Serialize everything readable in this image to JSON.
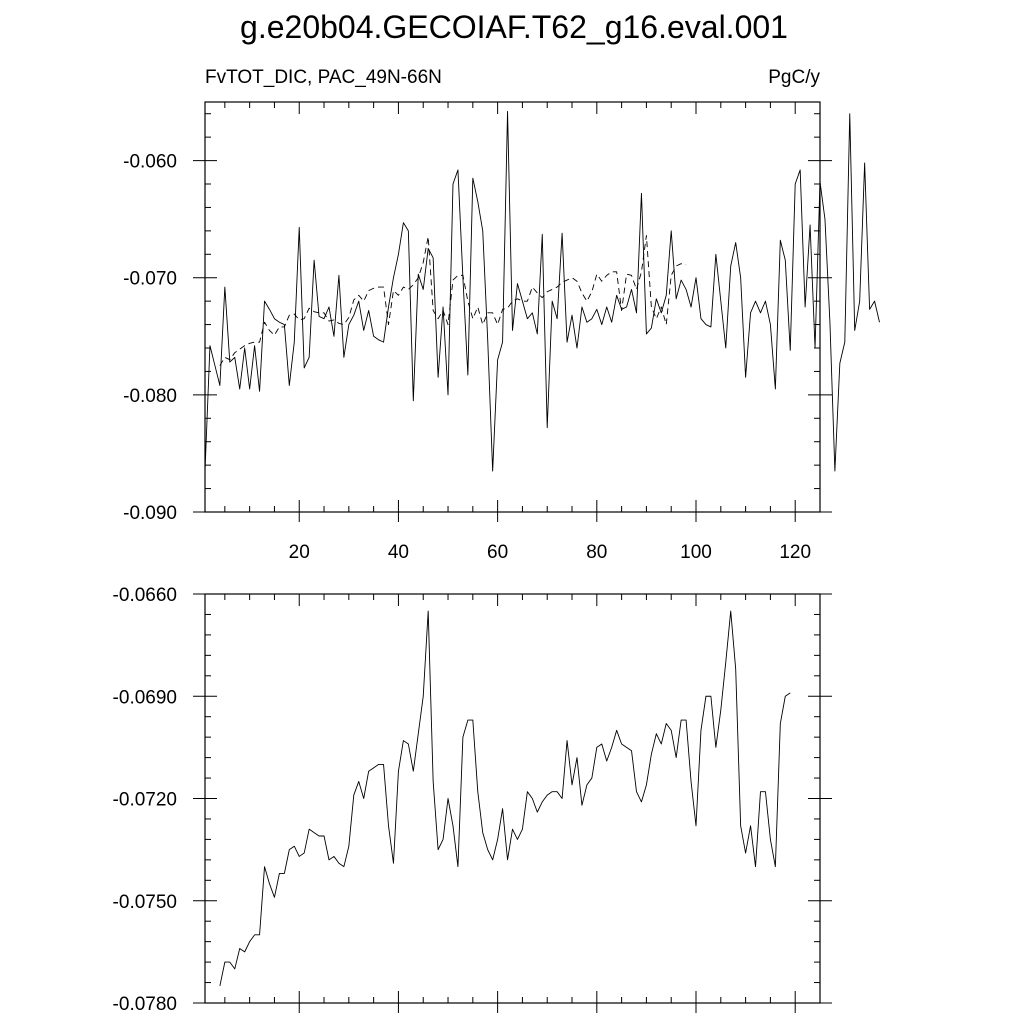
{
  "title": "g.e20b04.GECOIAF.T62_g16.eval.001",
  "subtitle_left": "FvTOT_DIC, PAC_49N-66N",
  "subtitle_right": "PgC/y",
  "chart_data": [
    {
      "type": "line",
      "panel": "top",
      "xlim": [
        1,
        125
      ],
      "ylim": [
        -0.09,
        -0.055
      ],
      "xticks": [
        20,
        40,
        60,
        80,
        100,
        120
      ],
      "xtick_labels": [
        "20",
        "40",
        "60",
        "80",
        "100",
        "120"
      ],
      "yticks": [
        -0.06,
        -0.07,
        -0.08,
        -0.09
      ],
      "ytick_labels": [
        "-0.060",
        "-0.070",
        "-0.080",
        "-0.090"
      ],
      "grid": false,
      "series": [
        {
          "style": "solid",
          "x_start": 1,
          "values": [
            -0.0865,
            -0.0758,
            -0.0775,
            -0.0792,
            -0.0708,
            -0.0772,
            -0.0768,
            -0.0795,
            -0.076,
            -0.0795,
            -0.0758,
            -0.0797,
            -0.072,
            -0.0727,
            -0.0735,
            -0.0738,
            -0.074,
            -0.0792,
            -0.0755,
            -0.0657,
            -0.0777,
            -0.0768,
            -0.0685,
            -0.0733,
            -0.0735,
            -0.0725,
            -0.075,
            -0.0698,
            -0.0768,
            -0.074,
            -0.0732,
            -0.072,
            -0.0745,
            -0.0728,
            -0.075,
            -0.0753,
            -0.0755,
            -0.0725,
            -0.07,
            -0.068,
            -0.0653,
            -0.066,
            -0.0805,
            -0.0697,
            -0.071,
            -0.0675,
            -0.0683,
            -0.0785,
            -0.0725,
            -0.08,
            -0.062,
            -0.0608,
            -0.07,
            -0.0783,
            -0.0615,
            -0.0635,
            -0.066,
            -0.0753,
            -0.0865,
            -0.077,
            -0.0755,
            -0.0558,
            -0.0745,
            -0.0705,
            -0.072,
            -0.0735,
            -0.073,
            -0.0748,
            -0.0663,
            -0.0828,
            -0.072,
            -0.0735,
            -0.0662,
            -0.0755,
            -0.0732,
            -0.076,
            -0.0725,
            -0.0738,
            -0.0735,
            -0.0727,
            -0.074,
            -0.0725,
            -0.0738,
            -0.0715,
            -0.0727,
            -0.0725,
            -0.071,
            -0.073,
            -0.0628,
            -0.0748,
            -0.0743,
            -0.0718,
            -0.073,
            -0.0715,
            -0.066,
            -0.0718,
            -0.0702,
            -0.071,
            -0.0725,
            -0.07,
            -0.0735,
            -0.074,
            -0.0742,
            -0.068,
            -0.072,
            -0.076,
            -0.069,
            -0.067,
            -0.07,
            -0.0785,
            -0.073,
            -0.072,
            -0.073,
            -0.072,
            -0.074,
            -0.0795,
            -0.0668,
            -0.0685,
            -0.0762,
            -0.062,
            -0.0608,
            -0.0725,
            -0.0655,
            -0.076,
            -0.0618,
            -0.065,
            -0.0738,
            -0.0865,
            -0.0773,
            -0.0755,
            -0.056,
            -0.0745,
            -0.072,
            -0.0602,
            -0.0727,
            -0.072,
            -0.0738
          ]
        },
        {
          "style": "dashed",
          "x_start": 4,
          "values": [
            -0.0775,
            -0.0768,
            -0.077,
            -0.0764,
            -0.0761,
            -0.0758,
            -0.0756,
            -0.0755,
            -0.0755,
            -0.0738,
            -0.0745,
            -0.0749,
            -0.0742,
            -0.0742,
            -0.0732,
            -0.0731,
            -0.0736,
            -0.0735,
            -0.0726,
            -0.0729,
            -0.073,
            -0.073,
            -0.0737,
            -0.0736,
            -0.0739,
            -0.074,
            -0.0734,
            -0.0719,
            -0.0715,
            -0.072,
            -0.0711,
            -0.0709,
            -0.0708,
            -0.0708,
            -0.074,
            -0.0711,
            -0.0715,
            -0.0708,
            -0.071,
            -0.0706,
            -0.07,
            -0.0687,
            -0.0665,
            -0.0728,
            -0.0735,
            -0.0728,
            -0.074,
            -0.0702,
            -0.0698,
            -0.0698,
            -0.072,
            -0.0735,
            -0.0725,
            -0.074,
            -0.073,
            -0.073,
            -0.074,
            -0.0727,
            -0.0726,
            -0.072,
            -0.0718,
            -0.072,
            -0.072,
            -0.0708,
            -0.0713,
            -0.0717,
            -0.0712,
            -0.071,
            -0.0708,
            -0.0704,
            -0.0702,
            -0.07,
            -0.0703,
            -0.0713,
            -0.072,
            -0.0712,
            -0.0697,
            -0.0703,
            -0.0698,
            -0.0695,
            -0.0695,
            -0.0728,
            -0.0697,
            -0.0698,
            -0.071,
            -0.0695,
            -0.0664,
            -0.0725,
            -0.0735,
            -0.0725,
            -0.074,
            -0.0698,
            -0.069,
            -0.0688,
            -0.0689
          ]
        }
      ]
    },
    {
      "type": "line",
      "panel": "bottom",
      "xlim": [
        1,
        125
      ],
      "ylim": [
        -0.078,
        -0.066
      ],
      "yticks": [
        -0.066,
        -0.069,
        -0.072,
        -0.075,
        -0.078
      ],
      "ytick_labels": [
        "-0.0660",
        "-0.0690",
        "-0.0720",
        "-0.0750",
        "-0.0780"
      ],
      "grid": false,
      "series": [
        {
          "style": "solid",
          "x_start": 4,
          "values": [
            -0.0775,
            -0.0768,
            -0.0768,
            -0.077,
            -0.0764,
            -0.0765,
            -0.0762,
            -0.076,
            -0.076,
            -0.074,
            -0.0745,
            -0.0749,
            -0.0742,
            -0.0742,
            -0.0735,
            -0.0734,
            -0.0737,
            -0.0736,
            -0.0729,
            -0.073,
            -0.0731,
            -0.0731,
            -0.0738,
            -0.0737,
            -0.0739,
            -0.074,
            -0.0734,
            -0.0719,
            -0.0715,
            -0.072,
            -0.0712,
            -0.0711,
            -0.071,
            -0.071,
            -0.0728,
            -0.0739,
            -0.0712,
            -0.0703,
            -0.0704,
            -0.0712,
            -0.0701,
            -0.069,
            -0.0665,
            -0.0715,
            -0.0735,
            -0.0732,
            -0.072,
            -0.0728,
            -0.074,
            -0.0702,
            -0.0697,
            -0.0697,
            -0.0718,
            -0.073,
            -0.0735,
            -0.0738,
            -0.0732,
            -0.0723,
            -0.0738,
            -0.0729,
            -0.0732,
            -0.0729,
            -0.0718,
            -0.072,
            -0.0724,
            -0.0721,
            -0.0719,
            -0.0718,
            -0.0718,
            -0.072,
            -0.0703,
            -0.0716,
            -0.0708,
            -0.0722,
            -0.0716,
            -0.0714,
            -0.0705,
            -0.0704,
            -0.0709,
            -0.0705,
            -0.07,
            -0.0704,
            -0.0705,
            -0.0706,
            -0.0718,
            -0.0721,
            -0.0716,
            -0.0707,
            -0.0701,
            -0.0704,
            -0.0698,
            -0.07,
            -0.0708,
            -0.0697,
            -0.0697,
            -0.0715,
            -0.0728,
            -0.07,
            -0.069,
            -0.069,
            -0.0705,
            -0.0694,
            -0.068,
            -0.0665,
            -0.0682,
            -0.0728,
            -0.0736,
            -0.0728,
            -0.074,
            -0.0718,
            -0.0718,
            -0.0732,
            -0.074,
            -0.0698,
            -0.069,
            -0.0689
          ]
        }
      ]
    }
  ]
}
